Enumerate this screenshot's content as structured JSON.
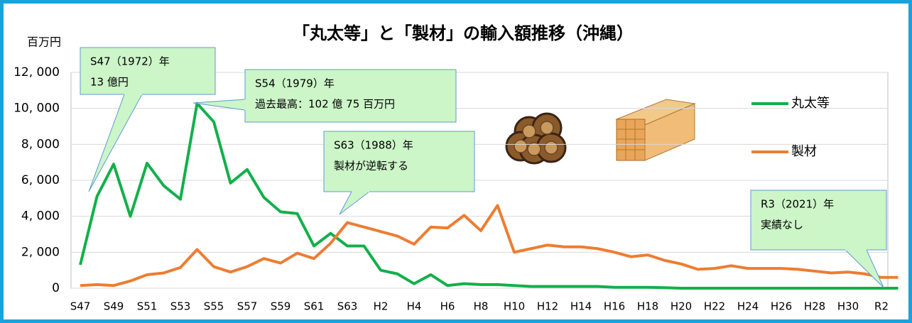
{
  "chart_data": {
    "type": "line",
    "title": "「丸太等」と「製材」の輸入額推移（沖縄）",
    "y_label": "百万円",
    "categories": [
      "S47",
      null,
      "S49",
      null,
      "S51",
      null,
      "S53",
      null,
      "S55",
      null,
      "S57",
      null,
      "S59",
      null,
      "S61",
      null,
      "S63",
      null,
      "H2",
      null,
      "H4",
      null,
      "H6",
      null,
      "H8",
      null,
      "H10",
      null,
      "H12",
      null,
      "H14",
      null,
      "H16",
      null,
      "H18",
      null,
      "H20",
      null,
      "H22",
      null,
      "H24",
      null,
      "H26",
      null,
      "H28",
      null,
      "H30",
      null,
      "R2",
      null
    ],
    "series": [
      {
        "name": "丸太等",
        "color": "#12b04a",
        "values": [
          1300,
          5100,
          6900,
          4000,
          6950,
          5700,
          4950,
          10275,
          9250,
          5850,
          6600,
          5050,
          4250,
          4150,
          2350,
          3050,
          2350,
          2350,
          1000,
          800,
          250,
          750,
          150,
          250,
          200,
          200,
          150,
          100,
          100,
          100,
          100,
          100,
          50,
          50,
          50,
          30,
          0,
          0,
          0,
          0,
          0,
          0,
          0,
          0,
          0,
          0,
          0,
          0,
          0,
          0
        ]
      },
      {
        "name": "製材",
        "color": "#ed7d31",
        "values": [
          150,
          200,
          150,
          400,
          750,
          850,
          1150,
          2150,
          1200,
          900,
          1200,
          1650,
          1400,
          1950,
          1650,
          2500,
          3650,
          3400,
          3150,
          2900,
          2450,
          3400,
          3350,
          4050,
          3200,
          4600,
          2000,
          2200,
          2400,
          2300,
          2300,
          2200,
          2000,
          1750,
          1850,
          1550,
          1350,
          1050,
          1100,
          1250,
          1100,
          1100,
          1100,
          1050,
          950,
          850,
          900,
          800,
          600,
          600
        ]
      }
    ],
    "ylim": [
      0,
      12000
    ],
    "yticks": [
      0,
      {
        "value": 2000,
        "label": "2, 000"
      },
      {
        "value": 4000,
        "label": "4, 000"
      },
      {
        "value": 6000,
        "label": "6, 000"
      },
      {
        "value": 8000,
        "label": "8, 000"
      },
      {
        "value": 10000,
        "label": "10, 000"
      },
      {
        "value": 12000,
        "label": "12, 000"
      }
    ],
    "grid": true,
    "annotations": [
      {
        "lines": [
          "S47（1972）年",
          "13 億円"
        ]
      },
      {
        "lines": [
          "S54（1979）年",
          "過去最高：102 億 75 百万円"
        ]
      },
      {
        "lines": [
          "S63（1988）年",
          "製材が逆転する"
        ]
      },
      {
        "lines": [
          "R3（2021）年",
          "実績なし"
        ]
      }
    ]
  }
}
